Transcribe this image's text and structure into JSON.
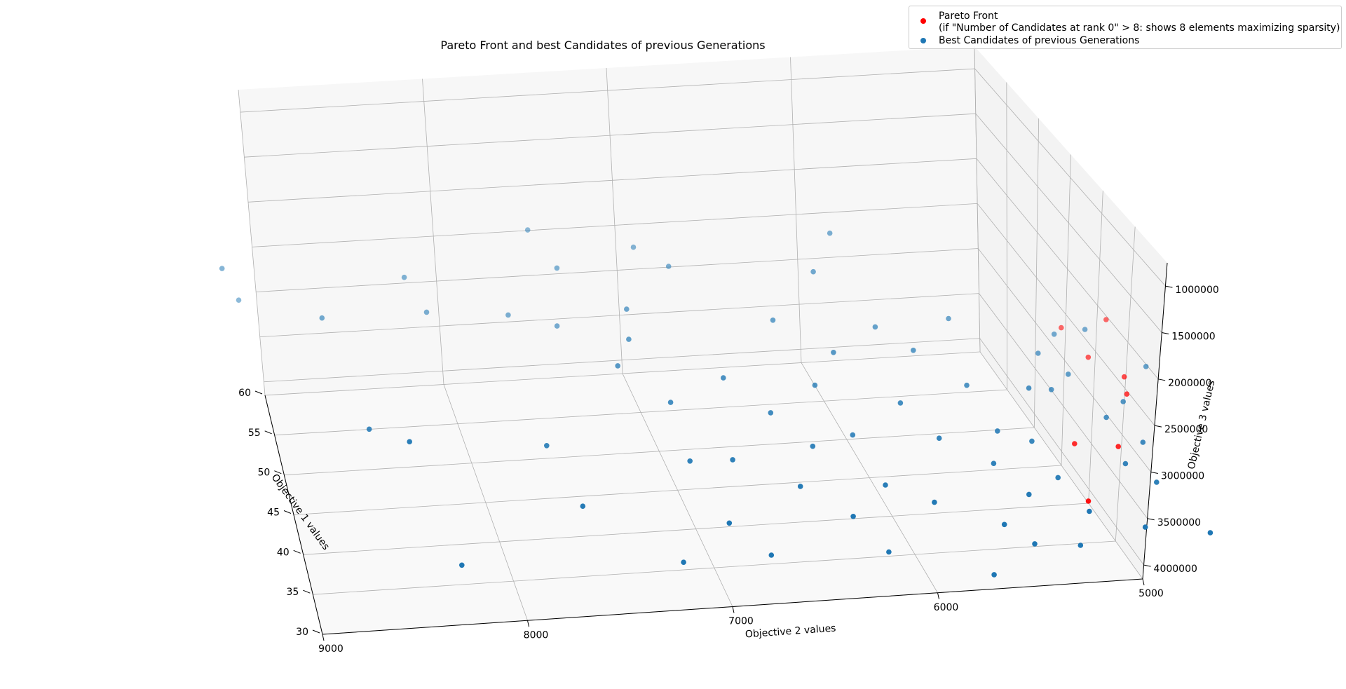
{
  "chart_data": {
    "type": "scatter3d",
    "title": "Pareto Front and best Candidates of previous Generations",
    "xlabel": "Objective 1 values",
    "ylabel": "Objective 2 values",
    "zlabel": "Objective 3 values",
    "xticks": [
      30,
      35,
      40,
      45,
      50,
      55,
      60
    ],
    "yticks": [
      9000,
      8000,
      7000,
      6000,
      5000
    ],
    "zticks": [
      1000000,
      1500000,
      2000000,
      2500000,
      3000000,
      3500000,
      4000000
    ],
    "zlim": [
      750000,
      4150000
    ],
    "grid": true,
    "legend_position": "top-right",
    "series": [
      {
        "name": "Pareto Front",
        "name_line2": "(if \"Number of Candidates at rank 0\" > 8: shows 8 elements maximizing sparsity)",
        "color": "#ff0000",
        "points": [
          {
            "o1": 45,
            "o2": 4700,
            "o3": 900000
          },
          {
            "o1": 46,
            "o2": 4900,
            "o3": 880000
          },
          {
            "o1": 50,
            "o2": 4500,
            "o3": 1050000
          },
          {
            "o1": 52,
            "o2": 4450,
            "o3": 1080000
          },
          {
            "o1": 55,
            "o2": 4550,
            "o3": 1080000
          },
          {
            "o1": 58,
            "o2": 4350,
            "o3": 1270000
          },
          {
            "o1": 58,
            "o2": 4600,
            "o3": 1200000
          },
          {
            "o1": 40,
            "o2": 5000,
            "o3": 770000
          }
        ]
      },
      {
        "name": "Best Candidates of previous Generations",
        "color": "#1f77b4",
        "points": [
          {
            "o1": 31,
            "o2": 8300,
            "o3": 1150000
          },
          {
            "o1": 44,
            "o2": 8600,
            "o3": 1600000
          },
          {
            "o1": 39,
            "o2": 8450,
            "o3": 1750000
          },
          {
            "o1": 56,
            "o2": 8700,
            "o3": 2050000
          },
          {
            "o1": 59,
            "o2": 8200,
            "o3": 2300000
          },
          {
            "o1": 58,
            "o2": 8100,
            "o3": 1900000
          },
          {
            "o1": 60,
            "o2": 9200,
            "o3": 2500000
          },
          {
            "o1": 62,
            "o2": 9100,
            "o3": 1900000
          },
          {
            "o1": 58,
            "o2": 7650,
            "o3": 1800000
          },
          {
            "o1": 57,
            "o2": 7400,
            "o3": 1700000
          },
          {
            "o1": 59,
            "o2": 7350,
            "o3": 2300000
          },
          {
            "o1": 62,
            "o2": 7450,
            "o3": 2650000
          },
          {
            "o1": 60,
            "o2": 6900,
            "o3": 2450000
          },
          {
            "o1": 58,
            "o2": 6750,
            "o3": 2300000
          },
          {
            "o1": 55,
            "o2": 7050,
            "o3": 2000000
          },
          {
            "o1": 52,
            "o2": 7100,
            "o3": 1850000
          },
          {
            "o1": 50,
            "o2": 7200,
            "o3": 1700000
          },
          {
            "o1": 47,
            "o2": 6700,
            "o3": 1700000
          },
          {
            "o1": 46,
            "o2": 7000,
            "o3": 1550000
          },
          {
            "o1": 43,
            "o2": 7700,
            "o3": 1400000
          },
          {
            "o1": 41,
            "o2": 7000,
            "o3": 1300000
          },
          {
            "o1": 40,
            "o2": 6800,
            "o3": 1350000
          },
          {
            "o1": 38,
            "o2": 7600,
            "o3": 1150000
          },
          {
            "o1": 36,
            "o2": 6900,
            "o3": 1050000
          },
          {
            "o1": 35,
            "o2": 6300,
            "o3": 1100000
          },
          {
            "o1": 33,
            "o2": 6750,
            "o3": 950000
          },
          {
            "o1": 32,
            "o2": 7200,
            "o3": 1000000
          },
          {
            "o1": 48,
            "o2": 6200,
            "o3": 1500000
          },
          {
            "o1": 50,
            "o2": 6050,
            "o3": 1700000
          },
          {
            "o1": 53,
            "o2": 6300,
            "o3": 1900000
          },
          {
            "o1": 56,
            "o2": 6000,
            "o3": 2250000
          },
          {
            "o1": 58,
            "o2": 5850,
            "o3": 2600000
          },
          {
            "o1": 46,
            "o2": 5800,
            "o3": 1400000
          },
          {
            "o1": 44,
            "o2": 6100,
            "o3": 1250000
          },
          {
            "o1": 42,
            "o2": 5700,
            "o3": 1300000
          },
          {
            "o1": 39,
            "o2": 6050,
            "o3": 1100000
          },
          {
            "o1": 37,
            "o2": 5850,
            "o3": 1050000
          },
          {
            "o1": 35,
            "o2": 5550,
            "o3": 950000
          },
          {
            "o1": 34,
            "o2": 6150,
            "o3": 850000
          },
          {
            "o1": 33,
            "o2": 5450,
            "o3": 900000
          },
          {
            "o1": 31,
            "o2": 5700,
            "o3": 800000
          },
          {
            "o1": 48,
            "o2": 5400,
            "o3": 1400000
          },
          {
            "o1": 47,
            "o2": 5100,
            "o3": 1400000
          },
          {
            "o1": 44,
            "o2": 5350,
            "o3": 1200000
          },
          {
            "o1": 43,
            "o2": 5200,
            "o3": 1150000
          },
          {
            "o1": 41,
            "o2": 5450,
            "o3": 1100000
          },
          {
            "o1": 40,
            "o2": 5150,
            "o3": 1000000
          },
          {
            "o1": 38,
            "o2": 5350,
            "o3": 1000000
          },
          {
            "o1": 36,
            "o2": 5100,
            "o3": 950000
          },
          {
            "o1": 35,
            "o2": 4850,
            "o3": 850000
          },
          {
            "o1": 34,
            "o2": 5200,
            "o3": 800000
          },
          {
            "o1": 40,
            "o2": 4650,
            "o3": 900000
          },
          {
            "o1": 42,
            "o2": 4750,
            "o3": 950000
          },
          {
            "o1": 44,
            "o2": 4600,
            "o3": 1000000
          },
          {
            "o1": 47,
            "o2": 4700,
            "o3": 1050000
          },
          {
            "o1": 50,
            "o2": 4900,
            "o3": 1150000
          },
          {
            "o1": 52,
            "o2": 4750,
            "o3": 1150000
          },
          {
            "o1": 54,
            "o2": 4850,
            "o3": 1250000
          },
          {
            "o1": 56,
            "o2": 4700,
            "o3": 1300000
          },
          {
            "o1": 57,
            "o2": 4500,
            "o3": 1250000
          },
          {
            "o1": 53,
            "o2": 4300,
            "o3": 1100000
          },
          {
            "o1": 49,
            "o2": 4550,
            "o3": 1050000
          },
          {
            "o1": 51,
            "o2": 5600,
            "o3": 1600000
          },
          {
            "o1": 53,
            "o2": 5750,
            "o3": 1750000
          },
          {
            "o1": 45,
            "o2": 6500,
            "o3": 1450000
          },
          {
            "o1": 42,
            "o2": 6350,
            "o3": 1300000
          },
          {
            "o1": 38,
            "o2": 6500,
            "o3": 1200000
          },
          {
            "o1": 55,
            "o2": 5300,
            "o3": 1650000
          },
          {
            "o1": 36,
            "o2": 4500,
            "o3": 700000
          }
        ]
      }
    ]
  }
}
